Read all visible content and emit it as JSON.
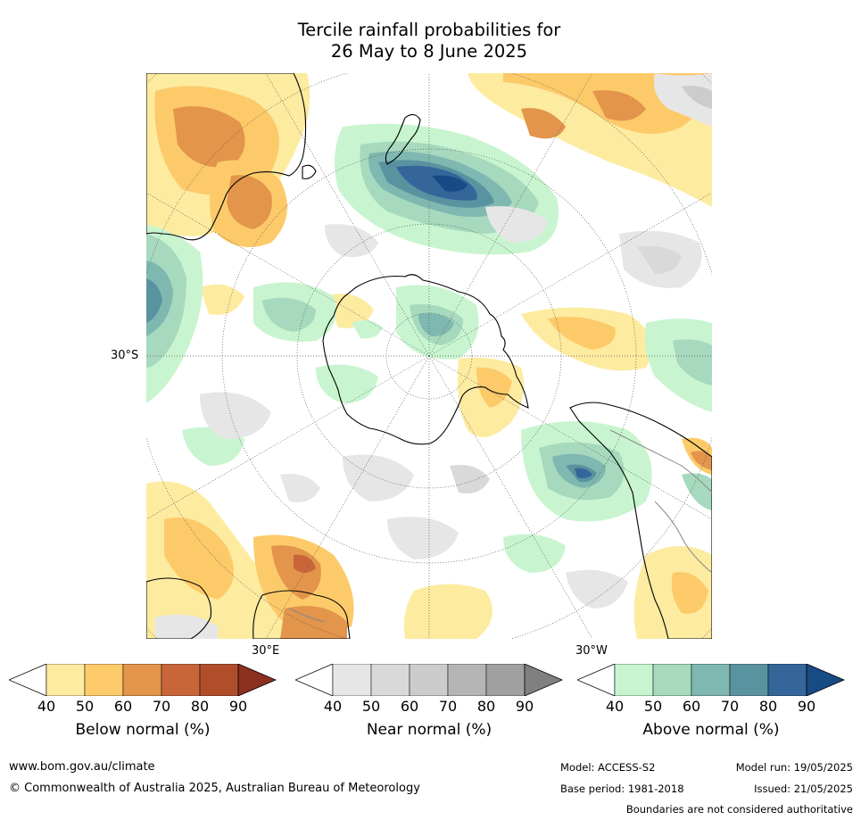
{
  "title_line1": "Tercile rainfall probabilities for",
  "title_line2": "26 May to 8 June 2025",
  "map": {
    "projection": "south polar stereographic",
    "lat_label": "30°S",
    "lon_label_east": "30°E",
    "lon_label_west": "30°W"
  },
  "legends": [
    {
      "name": "Below normal (%)",
      "ticks": [
        "40",
        "50",
        "60",
        "70",
        "80",
        "90"
      ],
      "colors": [
        "#ffffff",
        "#fdeba0",
        "#fdca6a",
        "#e2954b",
        "#c8663a",
        "#b04e2b",
        "#8c3020"
      ]
    },
    {
      "name": "Near normal (%)",
      "ticks": [
        "40",
        "50",
        "60",
        "70",
        "80",
        "90"
      ],
      "colors": [
        "#ffffff",
        "#e6e6e6",
        "#d9d9d9",
        "#cccccc",
        "#b5b5b5",
        "#a0a0a0",
        "#808080"
      ]
    },
    {
      "name": "Above normal (%)",
      "ticks": [
        "40",
        "50",
        "60",
        "70",
        "80",
        "90"
      ],
      "colors": [
        "#ffffff",
        "#c8f5cf",
        "#a6d9be",
        "#7fb8b0",
        "#5a93a0",
        "#34669a",
        "#174b85"
      ]
    }
  ],
  "footer": {
    "website": "www.bom.gov.au/climate",
    "copyright": "© Commonwealth of Australia 2025, Australian Bureau of Meteorology",
    "model": "Model: ACCESS-S2",
    "base_period": "Base period: 1981-2018",
    "model_run": "Model run: 19/05/2025",
    "issued": "Issued: 21/05/2025",
    "disclaimer": "Boundaries are not considered authoritative"
  }
}
